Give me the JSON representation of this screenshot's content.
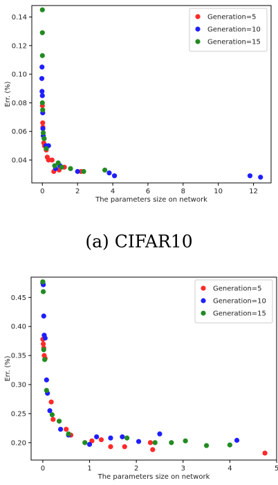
{
  "caption": "(a) CIFAR10",
  "chart_data": [
    {
      "type": "scatter",
      "xlabel": "The parameters size on network",
      "ylabel": "Err. (%)",
      "xlim": [
        -0.6,
        13.0
      ],
      "ylim": [
        0.024,
        0.148
      ],
      "xticks": [
        0,
        2,
        4,
        6,
        8,
        10,
        12
      ],
      "yticks": [
        0.04,
        0.06,
        0.08,
        0.1,
        0.12,
        0.14
      ],
      "legend_position": "top-right",
      "series": [
        {
          "name": "Generation=5",
          "color": "#ff2a2a",
          "points": [
            [
              0.0,
              0.078
            ],
            [
              0.02,
              0.066
            ],
            [
              0.03,
              0.063
            ],
            [
              0.08,
              0.052
            ],
            [
              0.12,
              0.05
            ],
            [
              0.22,
              0.047
            ],
            [
              0.28,
              0.042
            ],
            [
              0.35,
              0.04
            ],
            [
              0.55,
              0.04
            ],
            [
              0.65,
              0.032
            ],
            [
              0.95,
              0.033
            ],
            [
              1.25,
              0.035
            ],
            [
              2.2,
              0.032
            ]
          ]
        },
        {
          "name": "Generation=10",
          "color": "#1f1fff",
          "points": [
            [
              -0.02,
              0.105
            ],
            [
              -0.03,
              0.097
            ],
            [
              -0.02,
              0.088
            ],
            [
              0.0,
              0.085
            ],
            [
              0.02,
              0.073
            ],
            [
              0.03,
              0.062
            ],
            [
              0.05,
              0.057
            ],
            [
              0.1,
              0.055
            ],
            [
              0.2,
              0.05
            ],
            [
              0.35,
              0.05
            ],
            [
              0.75,
              0.034
            ],
            [
              1.0,
              0.036
            ],
            [
              2.0,
              0.032
            ],
            [
              3.8,
              0.031
            ],
            [
              4.1,
              0.029
            ],
            [
              11.8,
              0.029
            ],
            [
              12.4,
              0.028
            ]
          ]
        },
        {
          "name": "Generation=15",
          "color": "#228b22",
          "points": [
            [
              0.0,
              0.145
            ],
            [
              0.0,
              0.129
            ],
            [
              0.0,
              0.113
            ],
            [
              0.0,
              0.08
            ],
            [
              0.02,
              0.075
            ],
            [
              0.05,
              0.059
            ],
            [
              0.1,
              0.055
            ],
            [
              0.22,
              0.048
            ],
            [
              0.7,
              0.036
            ],
            [
              0.9,
              0.038
            ],
            [
              1.1,
              0.035
            ],
            [
              1.6,
              0.034
            ],
            [
              2.35,
              0.032
            ],
            [
              3.55,
              0.033
            ]
          ]
        }
      ]
    },
    {
      "type": "scatter",
      "xlabel": "The parameters size on network",
      "ylabel": "Err. (%)",
      "xlim": [
        -0.25,
        5.0
      ],
      "ylim": [
        0.17,
        0.485
      ],
      "xticks": [
        0,
        1,
        2,
        3,
        4,
        5
      ],
      "yticks": [
        0.2,
        0.25,
        0.3,
        0.35,
        0.4,
        0.45
      ],
      "legend_position": "top-right",
      "series": [
        {
          "name": "Generation=5",
          "color": "#ff2a2a",
          "points": [
            [
              0.0,
              0.378
            ],
            [
              0.01,
              0.37
            ],
            [
              0.02,
              0.363
            ],
            [
              0.03,
              0.35
            ],
            [
              0.05,
              0.345
            ],
            [
              0.18,
              0.27
            ],
            [
              0.22,
              0.24
            ],
            [
              0.5,
              0.223
            ],
            [
              0.6,
              0.213
            ],
            [
              1.05,
              0.203
            ],
            [
              1.25,
              0.205
            ],
            [
              1.45,
              0.193
            ],
            [
              1.75,
              0.193
            ],
            [
              2.3,
              0.2
            ],
            [
              2.35,
              0.188
            ],
            [
              4.75,
              0.182
            ]
          ]
        },
        {
          "name": "Generation=10",
          "color": "#1f1fff",
          "points": [
            [
              0.0,
              0.475
            ],
            [
              0.01,
              0.472
            ],
            [
              0.02,
              0.418
            ],
            [
              0.03,
              0.385
            ],
            [
              0.05,
              0.38
            ],
            [
              0.08,
              0.308
            ],
            [
              0.1,
              0.285
            ],
            [
              0.15,
              0.255
            ],
            [
              0.38,
              0.223
            ],
            [
              0.55,
              0.213
            ],
            [
              1.0,
              0.197
            ],
            [
              1.15,
              0.21
            ],
            [
              1.45,
              0.208
            ],
            [
              1.7,
              0.21
            ],
            [
              2.05,
              0.202
            ],
            [
              2.5,
              0.215
            ],
            [
              4.15,
              0.204
            ]
          ]
        },
        {
          "name": "Generation=15",
          "color": "#228b22",
          "points": [
            [
              0.0,
              0.477
            ],
            [
              0.01,
              0.46
            ],
            [
              0.02,
              0.36
            ],
            [
              0.04,
              0.343
            ],
            [
              0.08,
              0.29
            ],
            [
              0.2,
              0.248
            ],
            [
              0.35,
              0.237
            ],
            [
              0.55,
              0.215
            ],
            [
              0.9,
              0.2
            ],
            [
              1.8,
              0.208
            ],
            [
              2.4,
              0.2
            ],
            [
              2.75,
              0.2
            ],
            [
              3.05,
              0.203
            ],
            [
              3.5,
              0.195
            ],
            [
              4.0,
              0.196
            ]
          ]
        }
      ]
    }
  ]
}
